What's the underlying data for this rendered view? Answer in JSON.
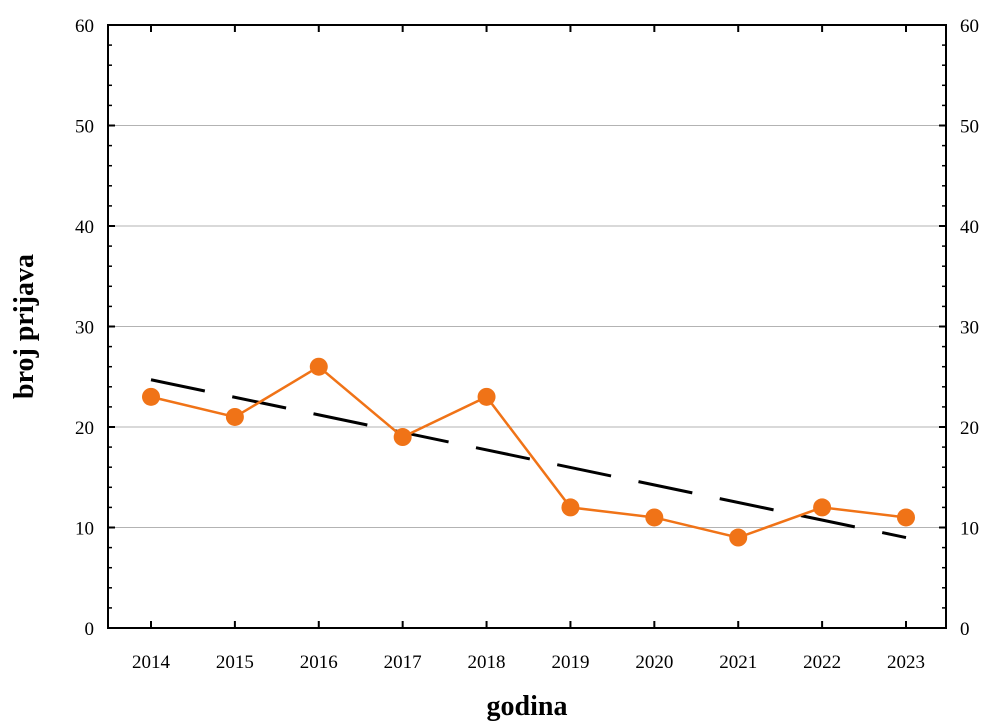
{
  "chart_data": {
    "type": "line",
    "title": "",
    "xlabel": "godina",
    "ylabel": "broj prijava",
    "categories": [
      "2014",
      "2015",
      "2016",
      "2017",
      "2018",
      "2019",
      "2020",
      "2021",
      "2022",
      "2023"
    ],
    "series": [
      {
        "values": [
          23,
          21,
          26,
          19,
          23,
          12,
          11,
          9,
          12,
          11
        ],
        "color": "#F07317",
        "marker": "circle"
      }
    ],
    "trendline": {
      "style": "dashed",
      "color": "#000000",
      "start": 24.7,
      "end": 9.0
    },
    "ylim": [
      0,
      60
    ],
    "yticks": [
      0,
      10,
      20,
      30,
      40,
      50,
      60
    ],
    "y_right_axis": true,
    "grid": "horizontal"
  }
}
